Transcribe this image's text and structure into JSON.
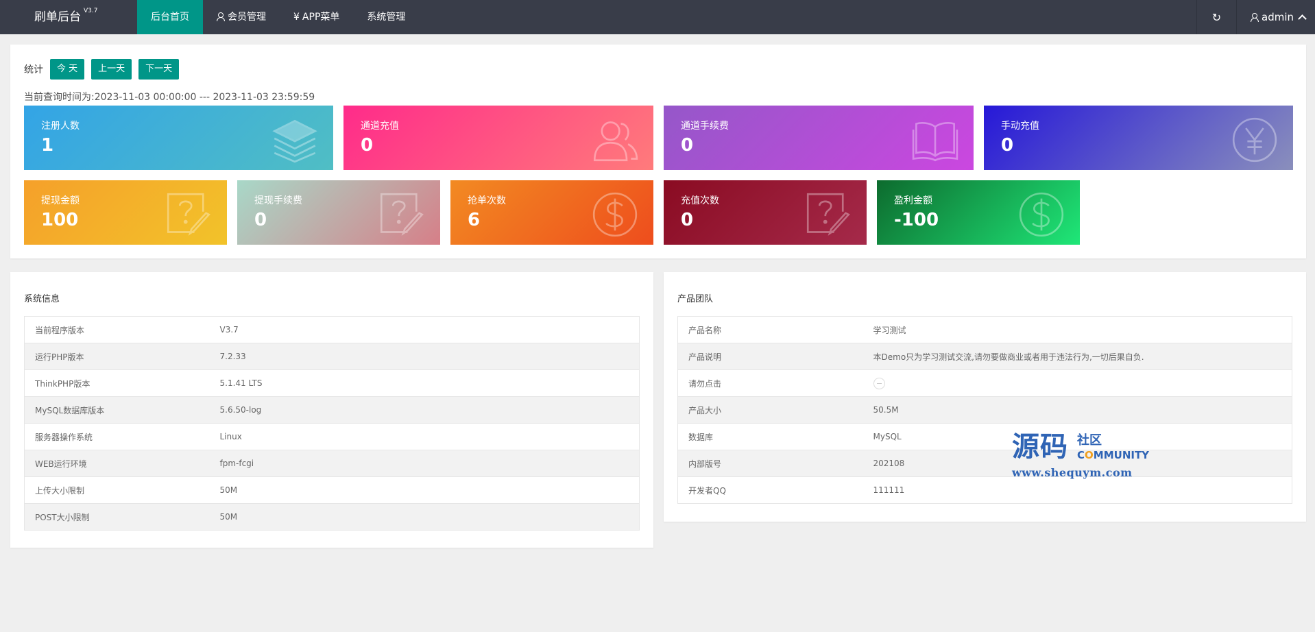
{
  "header": {
    "logo": "刷单后台",
    "version": "V3.7",
    "nav": [
      {
        "label": "后台首页",
        "active": true
      },
      {
        "label": "会员管理",
        "icon": "user-icon"
      },
      {
        "label": "APP菜单",
        "icon": "yen-icon",
        "icon_glyph": "¥"
      },
      {
        "label": "系统管理"
      }
    ],
    "refresh_icon": "↻",
    "user": "admin"
  },
  "stats": {
    "label": "统计",
    "buttons": [
      "今 天",
      "上一天",
      "下一天"
    ],
    "query_time": "当前查询时间为:2023-11-03 00:00:00 --- 2023-11-03 23:59:59",
    "cards_row1": [
      {
        "title": "注册人数",
        "value": "1",
        "icon": "layers-icon",
        "gradient": [
          "#33a4e6",
          "#50bec4"
        ]
      },
      {
        "title": "通道充值",
        "value": "0",
        "icon": "users-icon",
        "gradient": [
          "#ff2b8a",
          "#ff7b7b"
        ]
      },
      {
        "title": "通道手续费",
        "value": "0",
        "icon": "book-icon",
        "gradient": [
          "#9557c9",
          "#cb47e0"
        ]
      },
      {
        "title": "手动充值",
        "value": "0",
        "icon": "yen-circle-icon",
        "gradient": [
          "#2618d8",
          "#8a8fbc"
        ]
      }
    ],
    "cards_row2": [
      {
        "title": "提现金额",
        "value": "100",
        "icon": "question-edit-icon",
        "gradient": [
          "#f5a02a",
          "#f2c32a"
        ]
      },
      {
        "title": "提现手续费",
        "value": "0",
        "icon": "question-edit-icon",
        "gradient": [
          "#a8d8c8",
          "#d67f88"
        ]
      },
      {
        "title": "抢单次数",
        "value": "6",
        "icon": "dollar-circle-icon",
        "gradient": [
          "#f28a22",
          "#ee4d1d"
        ]
      },
      {
        "title": "充值次数",
        "value": "0",
        "icon": "question-edit-icon",
        "gradient": [
          "#8a0b22",
          "#a52a4a"
        ]
      },
      {
        "title": "盈利金额",
        "value": "-100",
        "icon": "dollar-circle-icon",
        "gradient": [
          "#0d6b2e",
          "#1fe778"
        ]
      }
    ]
  },
  "system_info": {
    "title": "系统信息",
    "rows": [
      {
        "key": "当前程序版本",
        "value": "V3.7"
      },
      {
        "key": "运行PHP版本",
        "value": "7.2.33"
      },
      {
        "key": "ThinkPHP版本",
        "value": "5.1.41 LTS"
      },
      {
        "key": "MySQL数据库版本",
        "value": "5.6.50-log"
      },
      {
        "key": "服务器操作系统",
        "value": "Linux"
      },
      {
        "key": "WEB运行环境",
        "value": "fpm-fcgi"
      },
      {
        "key": "上传大小限制",
        "value": "50M"
      },
      {
        "key": "POST大小限制",
        "value": "50M"
      }
    ]
  },
  "product_team": {
    "title": "产品团队",
    "rows": [
      {
        "key": "产品名称",
        "value": "学习测试"
      },
      {
        "key": "产品说明",
        "value": "本Demo只为学习测试交流,请勿要做商业或者用于违法行为,一切后果自负."
      },
      {
        "key": "请勿点击",
        "value": ""
      },
      {
        "key": "产品大小",
        "value": "50.5M"
      },
      {
        "key": "数据库",
        "value": "MySQL"
      },
      {
        "key": "内部版号",
        "value": "202108"
      },
      {
        "key": "开发者QQ",
        "value": "111111"
      }
    ]
  },
  "watermark": {
    "big": "源码",
    "small": "社区",
    "en_prefix": "C",
    "en_o": "O",
    "en_rest": "MMUNITY",
    "url": "www.shequym.com"
  }
}
